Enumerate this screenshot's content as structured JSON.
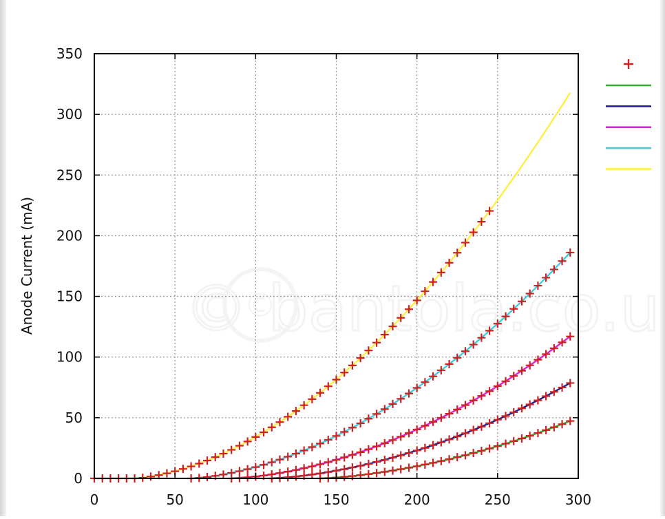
{
  "watermark": "© bantola.co.uk",
  "chart_data": {
    "type": "scatter",
    "title": "",
    "xlabel": "",
    "ylabel": "Anode Current (mA)",
    "xlim": [
      0,
      300
    ],
    "ylim": [
      0,
      350
    ],
    "x_ticks": [
      0,
      50,
      100,
      150,
      200,
      250,
      300
    ],
    "y_ticks": [
      0,
      50,
      100,
      150,
      200,
      250,
      300,
      350
    ],
    "grid": true,
    "legend_position": "top-right",
    "series": [
      {
        "kind": "markers",
        "marker": "plus",
        "color": "#cc2222",
        "curves": [
          {
            "x": [
              0,
              5,
              10,
              15,
              20,
              25,
              30,
              35,
              40,
              45,
              50,
              55,
              60,
              65,
              70,
              75,
              80,
              85,
              90,
              95,
              100,
              105,
              110,
              115,
              120,
              125,
              130,
              135,
              140,
              145,
              150,
              155,
              160,
              165,
              170,
              175,
              180,
              185,
              190,
              195,
              200,
              205,
              210,
              215,
              220,
              225,
              230,
              235,
              240,
              245
            ],
            "y": [
              0,
              0,
              0,
              0,
              0,
              0,
              0.5,
              1.5,
              2.7,
              4.2,
              5.9,
              7.8,
              9.9,
              12.2,
              14.7,
              17.5,
              20.4,
              23.5,
              26.9,
              30.4,
              34.1,
              38.0,
              42.1,
              46.4,
              50.8,
              55.5,
              60.3,
              65.3,
              70.5,
              75.9,
              81.4,
              87.2,
              93.1,
              99.2,
              105.4,
              111.9,
              118.5,
              125.3,
              132.3,
              139.4,
              146.7,
              154.2,
              161.9,
              169.7,
              177.7,
              185.9,
              194.3,
              202.8,
              211.5,
              220.4
            ]
          },
          {
            "x": [
              60,
              65,
              70,
              75,
              80,
              85,
              90,
              95,
              100,
              105,
              110,
              115,
              120,
              125,
              130,
              135,
              140,
              145,
              150,
              155,
              160,
              165,
              170,
              175,
              180,
              185,
              190,
              195,
              200,
              205,
              210,
              215,
              220,
              225,
              230,
              235,
              240,
              245,
              250,
              255,
              260,
              265,
              270,
              275,
              280,
              285,
              290,
              295
            ],
            "y": [
              0,
              0.4,
              1.1,
              2.1,
              3.2,
              4.5,
              6.0,
              7.6,
              9.3,
              11.2,
              13.3,
              15.5,
              17.9,
              20.4,
              23.0,
              25.8,
              28.7,
              31.8,
              35.0,
              38.3,
              41.8,
              45.4,
              49.2,
              53.1,
              57.1,
              61.3,
              65.6,
              70.0,
              74.6,
              79.3,
              84.1,
              89.1,
              94.2,
              99.4,
              104.8,
              110.3,
              115.9,
              121.7,
              127.5,
              133.5,
              139.7,
              145.9,
              152.3,
              158.8,
              165.4,
              172.2,
              179.1,
              186.1
            ]
          },
          {
            "x": [
              85,
              90,
              95,
              100,
              105,
              110,
              115,
              120,
              125,
              130,
              135,
              140,
              145,
              150,
              155,
              160,
              165,
              170,
              175,
              180,
              185,
              190,
              195,
              200,
              205,
              210,
              215,
              220,
              225,
              230,
              235,
              240,
              245,
              250,
              255,
              260,
              265,
              270,
              275,
              280,
              285,
              290,
              295
            ],
            "y": [
              0,
              0.2,
              0.8,
              1.5,
              2.3,
              3.3,
              4.4,
              5.6,
              6.9,
              8.4,
              9.9,
              11.6,
              13.4,
              15.3,
              17.3,
              19.4,
              21.6,
              24.0,
              26.4,
              29.0,
              31.6,
              34.4,
              37.3,
              40.3,
              43.4,
              46.6,
              49.9,
              53.3,
              56.8,
              60.4,
              64.2,
              68.0,
              71.9,
              76.0,
              80.1,
              84.4,
              88.7,
              93.2,
              97.8,
              102.4,
              107.2,
              112.1,
              117.0
            ]
          },
          {
            "x": [
              110,
              115,
              120,
              125,
              130,
              135,
              140,
              145,
              150,
              155,
              160,
              165,
              170,
              175,
              180,
              185,
              190,
              195,
              200,
              205,
              210,
              215,
              220,
              225,
              230,
              235,
              240,
              245,
              250,
              255,
              260,
              265,
              270,
              275,
              280,
              285,
              290,
              295
            ],
            "y": [
              0,
              0.3,
              0.9,
              1.5,
              2.3,
              3.2,
              4.1,
              5.2,
              6.4,
              7.6,
              9.0,
              10.4,
              11.9,
              13.6,
              15.3,
              17.1,
              19.0,
              20.9,
              23.0,
              25.1,
              27.4,
              29.7,
              32.1,
              34.6,
              37.2,
              39.9,
              42.6,
              45.5,
              48.4,
              51.4,
              54.5,
              57.7,
              61.0,
              64.3,
              67.8,
              71.3,
              74.9,
              78.6
            ]
          },
          {
            "x": [
              140,
              145,
              150,
              155,
              160,
              165,
              170,
              175,
              180,
              185,
              190,
              195,
              200,
              205,
              210,
              215,
              220,
              225,
              230,
              235,
              240,
              245,
              250,
              255,
              260,
              265,
              270,
              275,
              280,
              285,
              290,
              295
            ],
            "y": [
              0,
              0.2,
              0.7,
              1.3,
              1.9,
              2.7,
              3.5,
              4.4,
              5.4,
              6.4,
              7.6,
              8.8,
              10.0,
              11.4,
              12.8,
              14.3,
              15.8,
              17.5,
              19.1,
              20.9,
              22.7,
              24.6,
              26.6,
              28.6,
              30.7,
              32.9,
              35.1,
              37.4,
              39.8,
              42.2,
              44.7,
              47.3
            ]
          }
        ]
      },
      {
        "kind": "line",
        "color": "#33aa33",
        "x": [
          140,
          150,
          160,
          170,
          180,
          190,
          200,
          210,
          220,
          230,
          240,
          250,
          260,
          270,
          280,
          290,
          295
        ],
        "y": [
          0,
          0.7,
          1.9,
          3.5,
          5.4,
          7.6,
          10.0,
          12.8,
          15.8,
          19.1,
          22.7,
          26.6,
          30.7,
          35.1,
          39.8,
          44.7,
          47.3
        ]
      },
      {
        "kind": "line",
        "color": "#222288",
        "x": [
          110,
          120,
          130,
          140,
          150,
          160,
          170,
          180,
          190,
          200,
          210,
          220,
          230,
          240,
          250,
          260,
          270,
          280,
          290,
          295
        ],
        "y": [
          0,
          0.9,
          2.3,
          4.1,
          6.4,
          9.0,
          11.9,
          15.3,
          19.0,
          23.0,
          27.4,
          32.1,
          37.2,
          42.6,
          48.4,
          54.5,
          61.0,
          67.8,
          74.9,
          78.6
        ]
      },
      {
        "kind": "line",
        "color": "#dd22cc",
        "x": [
          85,
          100,
          110,
          120,
          130,
          140,
          150,
          160,
          170,
          180,
          190,
          200,
          210,
          220,
          230,
          240,
          250,
          260,
          270,
          280,
          290,
          295
        ],
        "y": [
          0,
          1.5,
          3.3,
          5.6,
          8.4,
          11.6,
          15.3,
          19.4,
          24.0,
          29.0,
          34.4,
          40.3,
          46.6,
          53.3,
          60.4,
          68.0,
          76.0,
          84.4,
          93.2,
          102.4,
          112.1,
          117.0
        ]
      },
      {
        "kind": "line",
        "color": "#44ccdd",
        "x": [
          60,
          70,
          80,
          90,
          100,
          110,
          120,
          130,
          140,
          150,
          160,
          170,
          180,
          190,
          200,
          210,
          220,
          230,
          240,
          250,
          260,
          270,
          280,
          290,
          295
        ],
        "y": [
          0,
          1.1,
          3.2,
          6.0,
          9.3,
          13.3,
          17.9,
          23.0,
          28.7,
          35.0,
          41.8,
          49.2,
          57.1,
          65.6,
          74.6,
          84.1,
          94.2,
          104.8,
          115.9,
          127.5,
          139.7,
          152.3,
          165.4,
          179.1,
          186.1
        ]
      },
      {
        "kind": "line",
        "color": "#ffee44",
        "x": [
          25,
          30,
          40,
          50,
          60,
          70,
          80,
          90,
          100,
          110,
          120,
          130,
          140,
          150,
          160,
          170,
          180,
          190,
          200,
          210,
          220,
          230,
          240,
          250,
          260,
          270,
          280,
          290,
          295
        ],
        "y": [
          0,
          0.5,
          2.7,
          5.9,
          9.9,
          14.7,
          20.4,
          26.9,
          34.1,
          42.1,
          50.8,
          60.3,
          70.5,
          81.4,
          93.1,
          105.4,
          118.5,
          132.3,
          146.7,
          161.9,
          177.7,
          194.3,
          211.5,
          229.4,
          247.9,
          267.1,
          286.9,
          307.4,
          317.9
        ]
      }
    ]
  }
}
